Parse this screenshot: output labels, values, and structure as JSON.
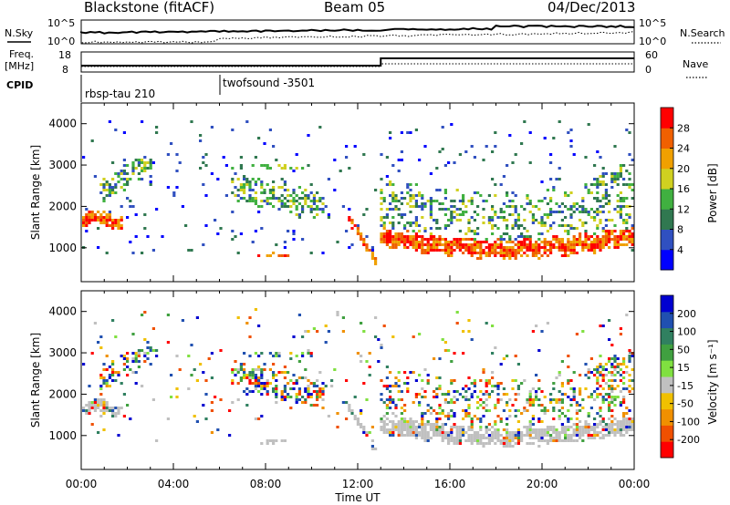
{
  "header": {
    "station": "Blackstone (fitACF)",
    "beam": "Beam 05",
    "date": "04/Dec/2013"
  },
  "top_panels": {
    "nsky_label": "N.Sky",
    "nsky_ticks": [
      "10^5",
      "10^0"
    ],
    "nsearch_label": "N.Search",
    "nsearch_ticks": [
      "10^5",
      "10^0"
    ],
    "freq_label_1": "Freq.",
    "freq_label_2": "[MHz]",
    "freq_ticks": [
      "18",
      "8"
    ],
    "nave_label": "Nave",
    "nave_ticks": [
      "60",
      "0"
    ],
    "cpid_label": "CPID",
    "cpid_entries": [
      "rbsp-tau 210",
      "twofsound -3501"
    ]
  },
  "x_axis": {
    "label": "Time UT",
    "ticks": [
      "00:00",
      "04:00",
      "08:00",
      "12:00",
      "16:00",
      "20:00",
      "00:00"
    ]
  },
  "chart_data": [
    {
      "type": "heatmap",
      "title": "",
      "xlabel": "Time UT",
      "ylabel": "Slant Range [km]",
      "x_ticks": [
        "00:00",
        "04:00",
        "08:00",
        "12:00",
        "16:00",
        "20:00",
        "00:00"
      ],
      "y_ticks": [
        1000,
        2000,
        3000,
        4000
      ],
      "xlim_hours": [
        0,
        24
      ],
      "ylim": [
        180,
        4500
      ],
      "colorbar": {
        "label": "Power [dB]",
        "ticks": [
          "28",
          "24",
          "20",
          "16",
          "12",
          "8",
          "4"
        ],
        "range": [
          0,
          30
        ],
        "colors": [
          "#0000ff",
          "#3050c0",
          "#307850",
          "#40b040",
          "#d0d020",
          "#f0a000",
          "#f06000",
          "#ff0000"
        ]
      }
    },
    {
      "type": "heatmap",
      "title": "",
      "xlabel": "Time UT",
      "ylabel": "Slant Range [km]",
      "x_ticks": [
        "00:00",
        "04:00",
        "08:00",
        "12:00",
        "16:00",
        "20:00",
        "00:00"
      ],
      "y_ticks": [
        1000,
        2000,
        3000,
        4000
      ],
      "xlim_hours": [
        0,
        24
      ],
      "ylim": [
        180,
        4500
      ],
      "colorbar": {
        "label": "Velocity [m s⁻¹]",
        "ticks": [
          "200",
          "100",
          "50",
          "15",
          "-15",
          "-50",
          "-100",
          "-200"
        ],
        "range": [
          -250,
          250
        ],
        "colors": [
          "#ff0000",
          "#f05000",
          "#f09000",
          "#f0c000",
          "#c0c0c0",
          "#80e040",
          "#40a040",
          "#308060",
          "#2050b0",
          "#0000d0"
        ]
      }
    }
  ]
}
